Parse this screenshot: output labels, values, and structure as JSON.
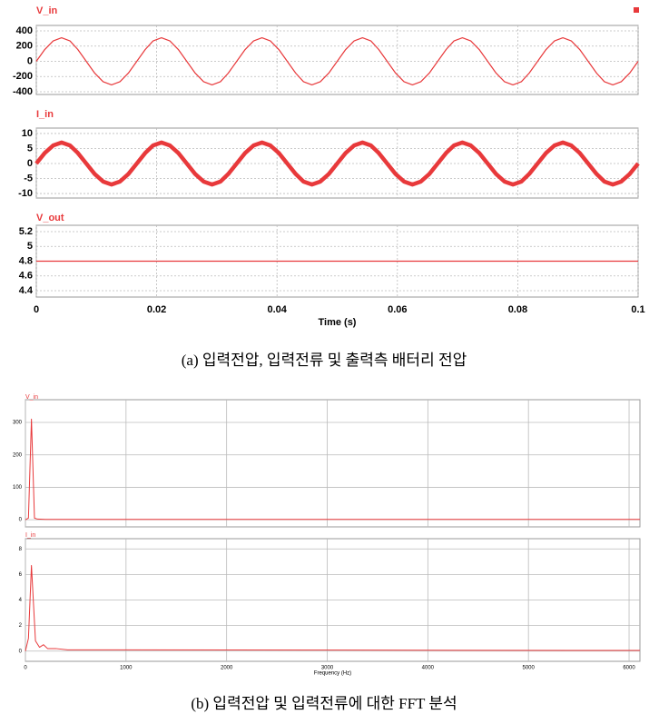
{
  "chart_data": [
    {
      "type": "line",
      "title": "V_in",
      "xlim": [
        0,
        0.1
      ],
      "xticks": [
        0,
        0.02,
        0.04,
        0.06,
        0.08,
        0.1
      ],
      "ylim": [
        -436,
        472
      ],
      "yticks": [
        -400,
        -200,
        0,
        200,
        400
      ],
      "grid": true,
      "x": [
        0,
        0.0014,
        0.0028,
        0.0042,
        0.0056,
        0.0069,
        0.0083,
        0.0097,
        0.0111,
        0.0125,
        0.0139,
        0.0153,
        0.0167,
        0.0181,
        0.0194,
        0.0208,
        0.0222,
        0.0236,
        0.025,
        0.0264,
        0.0278,
        0.0292,
        0.0306,
        0.0319,
        0.0333,
        0.0347,
        0.0361,
        0.0375,
        0.0389,
        0.0403,
        0.0417,
        0.0431,
        0.0444,
        0.0458,
        0.0472,
        0.0486,
        0.05,
        0.0514,
        0.0528,
        0.0542,
        0.0556,
        0.0569,
        0.0583,
        0.0597,
        0.0611,
        0.0625,
        0.0639,
        0.0653,
        0.0667,
        0.0681,
        0.0694,
        0.0708,
        0.0722,
        0.0736,
        0.075,
        0.0764,
        0.0778,
        0.0792,
        0.0806,
        0.0819,
        0.0833,
        0.0847,
        0.0861,
        0.0875,
        0.0889,
        0.0903,
        0.0917,
        0.0931,
        0.0944,
        0.0958,
        0.0972,
        0.0986,
        0.1
      ],
      "series": [
        {
          "color": "#e8393b",
          "values": [
            0,
            155,
            268,
            310,
            268,
            155,
            0,
            -155,
            -268,
            -310,
            -268,
            -155,
            0,
            155,
            268,
            310,
            268,
            155,
            0,
            -155,
            -268,
            -310,
            -268,
            -155,
            0,
            155,
            268,
            310,
            268,
            155,
            0,
            -155,
            -268,
            -310,
            -268,
            -155,
            0,
            155,
            268,
            310,
            268,
            155,
            0,
            -155,
            -268,
            -310,
            -268,
            -155,
            0,
            155,
            268,
            310,
            268,
            155,
            0,
            -155,
            -268,
            -310,
            -268,
            -155,
            0,
            155,
            268,
            310,
            268,
            155,
            0,
            -155,
            -268,
            -310,
            -268,
            -155,
            0
          ]
        }
      ]
    },
    {
      "type": "line",
      "title": "I_in",
      "xlim": [
        0,
        0.1
      ],
      "xticks": [
        0,
        0.02,
        0.04,
        0.06,
        0.08,
        0.1
      ],
      "ylim": [
        -11.5,
        11.8
      ],
      "yticks": [
        -10,
        -5,
        0,
        5,
        10
      ],
      "grid": true,
      "x": [
        0,
        0.0014,
        0.0028,
        0.0042,
        0.0056,
        0.0069,
        0.0083,
        0.0097,
        0.0111,
        0.0125,
        0.0139,
        0.0153,
        0.0167,
        0.0181,
        0.0194,
        0.0208,
        0.0222,
        0.0236,
        0.025,
        0.0264,
        0.0278,
        0.0292,
        0.0306,
        0.0319,
        0.0333,
        0.0347,
        0.0361,
        0.0375,
        0.0389,
        0.0403,
        0.0417,
        0.0431,
        0.0444,
        0.0458,
        0.0472,
        0.0486,
        0.05,
        0.0514,
        0.0528,
        0.0542,
        0.0556,
        0.0569,
        0.0583,
        0.0597,
        0.0611,
        0.0625,
        0.0639,
        0.0653,
        0.0667,
        0.0681,
        0.0694,
        0.0708,
        0.0722,
        0.0736,
        0.075,
        0.0764,
        0.0778,
        0.0792,
        0.0806,
        0.0819,
        0.0833,
        0.0847,
        0.0861,
        0.0875,
        0.0889,
        0.0903,
        0.0917,
        0.0931,
        0.0944,
        0.0958,
        0.0972,
        0.0986,
        0.1
      ],
      "series": [
        {
          "color": "#e8393b",
          "values": [
            0,
            3.5,
            6,
            7,
            6,
            3.5,
            0,
            -3.5,
            -6,
            -7,
            -6,
            -3.5,
            0,
            3.5,
            6,
            7,
            6,
            3.5,
            0,
            -3.5,
            -6,
            -7,
            -6,
            -3.5,
            0,
            3.5,
            6,
            7,
            6,
            3.5,
            0,
            -3.5,
            -6,
            -7,
            -6,
            -3.5,
            0,
            3.5,
            6,
            7,
            6,
            3.5,
            0,
            -3.5,
            -6,
            -7,
            -6,
            -3.5,
            0,
            3.5,
            6,
            7,
            6,
            3.5,
            0,
            -3.5,
            -6,
            -7,
            -6,
            -3.5,
            0,
            3.5,
            6,
            7,
            6,
            3.5,
            0,
            -3.5,
            -6,
            -7,
            -6,
            -3.5,
            0
          ]
        }
      ]
    },
    {
      "type": "line",
      "title": "V_out",
      "xlabel": "Time (s)",
      "xlim": [
        0,
        0.1
      ],
      "xticks": [
        0,
        0.02,
        0.04,
        0.06,
        0.08,
        0.1
      ],
      "ylim": [
        4.314,
        5.286
      ],
      "yticks": [
        4.4,
        4.6,
        4.8,
        5,
        5.2
      ],
      "grid": true,
      "x": [
        0,
        0.1
      ],
      "series": [
        {
          "color": "#e8393b",
          "values": [
            4.8,
            4.8
          ]
        }
      ]
    },
    {
      "type": "line",
      "title": "V_in",
      "xlim": [
        0,
        6108
      ],
      "xticks": [
        0,
        1000,
        2000,
        3000,
        4000,
        5000,
        6000
      ],
      "ylim": [
        -22,
        370
      ],
      "yticks": [
        0,
        100,
        200,
        300
      ],
      "grid": true,
      "x": [
        0,
        30,
        60,
        90,
        120,
        200,
        6108
      ],
      "series": [
        {
          "color": "#e8393b",
          "values": [
            0,
            5,
            310,
            5,
            2,
            1,
            1
          ]
        }
      ]
    },
    {
      "type": "line",
      "title": "I_in",
      "xlabel": "Frequency (Hz)",
      "xlim": [
        0,
        6108
      ],
      "xticks": [
        0,
        1000,
        2000,
        3000,
        4000,
        5000,
        6000
      ],
      "ylim": [
        -0.8,
        8.8
      ],
      "yticks": [
        0,
        2,
        4,
        6,
        8
      ],
      "grid": true,
      "x": [
        0,
        30,
        60,
        100,
        140,
        180,
        220,
        300,
        420,
        6108
      ],
      "series": [
        {
          "color": "#e8393b",
          "values": [
            0,
            1,
            6.7,
            0.8,
            0.3,
            0.5,
            0.2,
            0.2,
            0.1,
            0.05
          ]
        }
      ]
    }
  ],
  "captions": [
    "(a) 입력전압, 입력전류 및 출력측 배터리 전압",
    "(b) 입력전압 및 입력전류에 대한 FFT 분석"
  ]
}
